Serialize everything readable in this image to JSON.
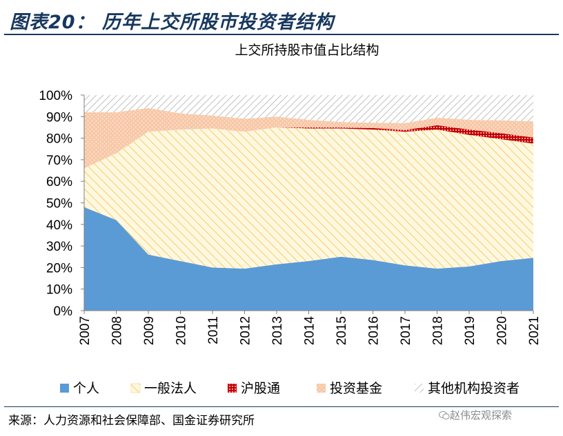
{
  "figure_title": "图表20：  历年上交所股市投资者结构",
  "source": "来源：人力资源和社会保障部、国金证券研究所",
  "watermark": "赵伟宏观探索",
  "colors": {
    "title": "#17375e",
    "individual": "#5b9bd5",
    "corporate_fill": "#fff2cc",
    "corporate_stroke": "#f4c95d",
    "connect": "#c00000",
    "funds_fill": "#f8cbad",
    "funds_dot": "#f4a582",
    "other": "#c9c9c9"
  },
  "chart_data": {
    "type": "area",
    "stacked": true,
    "title": "上交所持股市值占比结构",
    "x": [
      "2007",
      "2008",
      "2009",
      "2010",
      "2011",
      "2012",
      "2013",
      "2014",
      "2015",
      "2016",
      "2017",
      "2018",
      "2019",
      "2020",
      "2021"
    ],
    "ylim": [
      0,
      100
    ],
    "yticks": [
      "0%",
      "10%",
      "20%",
      "30%",
      "40%",
      "50%",
      "60%",
      "70%",
      "80%",
      "90%",
      "100%"
    ],
    "grid": false,
    "legend_position": "bottom",
    "series": [
      {
        "name": "个人",
        "key": "individual",
        "values": [
          48,
          42,
          26,
          23,
          20,
          19.5,
          21.5,
          23,
          25,
          23.5,
          21,
          19.5,
          20.5,
          23,
          24.5
        ]
      },
      {
        "name": "一般法人",
        "key": "corporate",
        "values": [
          18,
          31,
          57,
          61,
          64.5,
          63.5,
          63.5,
          61.5,
          59.5,
          60.5,
          62,
          64.5,
          61,
          56.5,
          53
        ]
      },
      {
        "name": "沪股通",
        "key": "connect",
        "values": [
          0,
          0,
          0,
          0,
          0,
          0,
          0,
          0.5,
          0.5,
          0.7,
          0.8,
          2,
          2.5,
          2.8,
          2.8
        ]
      },
      {
        "name": "投资基金",
        "key": "funds",
        "values": [
          26,
          19,
          11,
          7.5,
          6,
          6,
          5,
          3.5,
          2.5,
          2.5,
          3.2,
          3.5,
          4.5,
          6,
          7.5
        ]
      },
      {
        "name": "其他机构投资者",
        "key": "other",
        "values": [
          8,
          8,
          6,
          8.5,
          9.5,
          11,
          10,
          11.5,
          12.5,
          12.8,
          13,
          10.5,
          11.5,
          11.7,
          12.2
        ]
      }
    ]
  }
}
